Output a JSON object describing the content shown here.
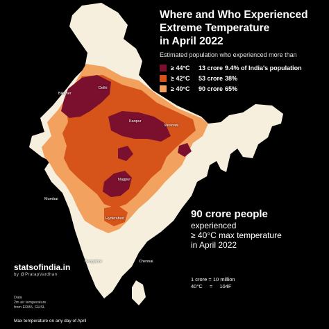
{
  "title_lines": [
    "Where and Who Experienced",
    "Extreme Temperature",
    "in April 2022"
  ],
  "subtitle": "Estimated population who experienced more than",
  "legend": [
    {
      "threshold": "≥ 44°C",
      "population": "13 crore",
      "share": "9.4% of India's population",
      "color": "#7b0f2e"
    },
    {
      "threshold": "≥ 42°C",
      "population": "53 crore",
      "share": "38%",
      "color": "#d6541a"
    },
    {
      "threshold": "≥ 40°C",
      "population": "90 crore",
      "share": "65%",
      "color": "#f2a15f"
    }
  ],
  "colors": {
    "background": "#000000",
    "land": "#f6efdd",
    "band_40": "#f2a15f",
    "band_42": "#d6541a",
    "band_44": "#7b0f2e"
  },
  "cities": {
    "bikaner": "Bikaner",
    "delhi": "Delhi",
    "kanpur": "Kanpur",
    "varanasi": "Varanasi",
    "nagpur": "Nagpur",
    "mumbai": "Mumbai",
    "hyderabad": "Hyderabad",
    "bangalore": "Bangalore",
    "chennai": "Chennai"
  },
  "highlight": {
    "headline": "90 crore people",
    "line1": "experienced",
    "line2": "≥ 40°C max temperature",
    "line3": "in April 2022"
  },
  "brand": {
    "name": "statsofindia.in",
    "byline": "by @PratapVardhan"
  },
  "conversions": {
    "crore": "1 crore = 10 million",
    "temp_c": "40°C",
    "temp_eq": "=",
    "temp_f": "104F"
  },
  "data_notes": {
    "label": "Data",
    "line1": "2m air temperature",
    "line2": "from ERA5, GHSL"
  },
  "footnote": "Max temperature on any day of April"
}
